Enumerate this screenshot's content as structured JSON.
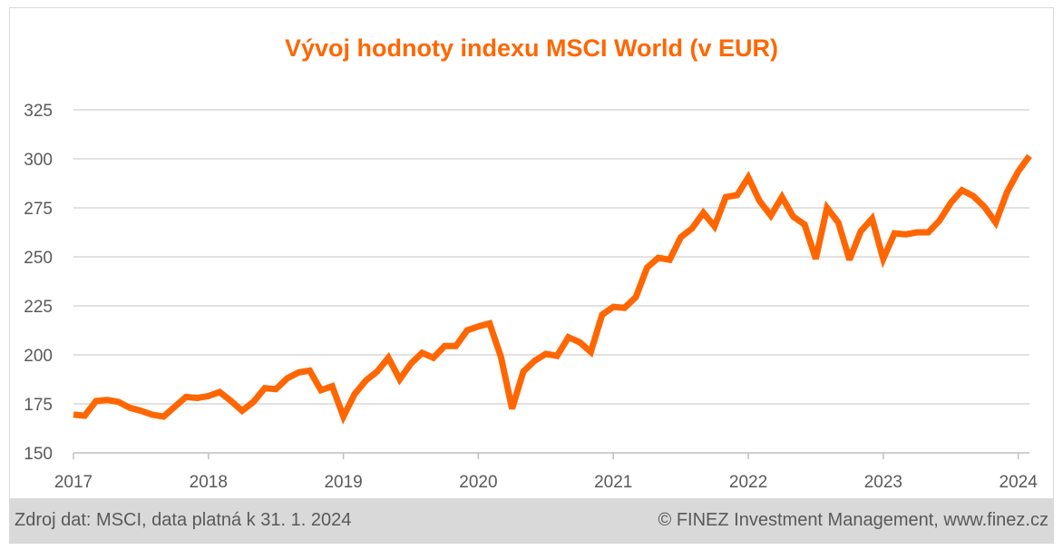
{
  "chart_data": {
    "type": "line",
    "title": "Vývoj hodnoty indexu MSCI World (v EUR)",
    "xlabel": "",
    "ylabel": "",
    "ylim": [
      150,
      325
    ],
    "yticks": [
      150,
      175,
      200,
      225,
      250,
      275,
      300,
      325
    ],
    "xlim": [
      2017,
      2024.083
    ],
    "xticks": [
      2017,
      2018,
      2019,
      2020,
      2021,
      2022,
      2023,
      2024
    ],
    "xtick_labels": [
      "2017",
      "2018",
      "2019",
      "2020",
      "2021",
      "2022",
      "2023",
      "2024"
    ],
    "grid": "horizontal",
    "series": [
      {
        "name": "MSCI World (EUR)",
        "color": "#ff6600",
        "x": [
          2017.0,
          2017.083,
          2017.167,
          2017.25,
          2017.333,
          2017.417,
          2017.5,
          2017.583,
          2017.667,
          2017.75,
          2017.833,
          2017.917,
          2018.0,
          2018.083,
          2018.167,
          2018.25,
          2018.333,
          2018.417,
          2018.5,
          2018.583,
          2018.667,
          2018.75,
          2018.833,
          2018.917,
          2019.0,
          2019.083,
          2019.167,
          2019.25,
          2019.333,
          2019.417,
          2019.5,
          2019.583,
          2019.667,
          2019.75,
          2019.833,
          2019.917,
          2020.0,
          2020.083,
          2020.167,
          2020.25,
          2020.333,
          2020.417,
          2020.5,
          2020.583,
          2020.667,
          2020.75,
          2020.833,
          2020.917,
          2021.0,
          2021.083,
          2021.167,
          2021.25,
          2021.333,
          2021.417,
          2021.5,
          2021.583,
          2021.667,
          2021.75,
          2021.833,
          2021.917,
          2022.0,
          2022.083,
          2022.167,
          2022.25,
          2022.333,
          2022.417,
          2022.5,
          2022.583,
          2022.667,
          2022.75,
          2022.833,
          2022.917,
          2023.0,
          2023.083,
          2023.167,
          2023.25,
          2023.333,
          2023.417,
          2023.5,
          2023.583,
          2023.667,
          2023.75,
          2023.833,
          2023.917,
          2024.0,
          2024.083
        ],
        "values": [
          169.5,
          169.0,
          176.5,
          177.0,
          176.0,
          173.0,
          171.5,
          169.5,
          168.5,
          173.5,
          178.5,
          178.0,
          179.0,
          181.0,
          176.5,
          171.5,
          176.0,
          183.0,
          182.5,
          188.0,
          191.0,
          192.0,
          182.0,
          184.0,
          168.5,
          180.0,
          187.0,
          191.5,
          198.5,
          187.5,
          195.5,
          201.0,
          198.5,
          204.5,
          204.5,
          212.5,
          214.5,
          216.0,
          199.0,
          172.5,
          191.5,
          197.0,
          200.5,
          199.5,
          209.0,
          206.5,
          201.5,
          220.5,
          224.5,
          224.0,
          229.5,
          244.5,
          249.5,
          248.5,
          260.0,
          264.5,
          272.5,
          265.5,
          280.5,
          281.5,
          290.5,
          278.5,
          271.0,
          280.5,
          270.5,
          266.5,
          249.0,
          275.0,
          267.5,
          248.5,
          263.0,
          269.5,
          249.0,
          262.0,
          261.5,
          262.5,
          262.5,
          268.5,
          277.5,
          284.0,
          281.0,
          275.5,
          267.5,
          283.0,
          293.5,
          301.5
        ]
      }
    ]
  },
  "footer": {
    "source": "Zdroj dat: MSCI, data platná k 31. 1. 2024",
    "copyright": "© FINEZ Investment Management, www.finez.cz"
  }
}
